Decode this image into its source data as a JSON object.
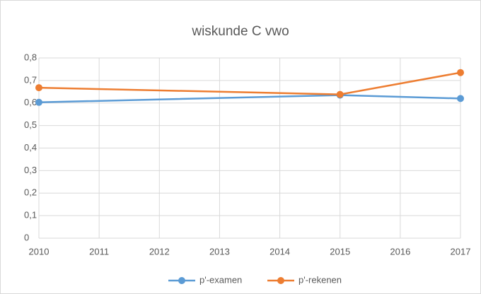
{
  "chart_data": {
    "type": "line",
    "title": "wiskunde C vwo",
    "x": [
      2010,
      2015,
      2017
    ],
    "series": [
      {
        "name": "p'-examen",
        "color": "#5b9bd5",
        "values": [
          0.603,
          0.635,
          0.62
        ]
      },
      {
        "name": "p'-rekenen",
        "color": "#ed7d31",
        "values": [
          0.668,
          0.638,
          0.735
        ]
      }
    ],
    "xlim": [
      2010,
      2017
    ],
    "xticks": [
      2010,
      2011,
      2012,
      2013,
      2014,
      2015,
      2016,
      2017
    ],
    "ylim": [
      0,
      0.8
    ],
    "yticks": [
      0,
      {
        "value": 0.1,
        "label": "0,1"
      },
      {
        "value": 0.2,
        "label": "0,2"
      },
      {
        "value": 0.3,
        "label": "0,3"
      },
      {
        "value": 0.4,
        "label": "0,4"
      },
      {
        "value": 0.5,
        "label": "0,5"
      },
      {
        "value": 0.6,
        "label": "0,6"
      },
      {
        "value": 0.7,
        "label": "0,7"
      },
      {
        "value": 0.8,
        "label": "0,8"
      }
    ],
    "grid": true,
    "legend": "bottom"
  }
}
